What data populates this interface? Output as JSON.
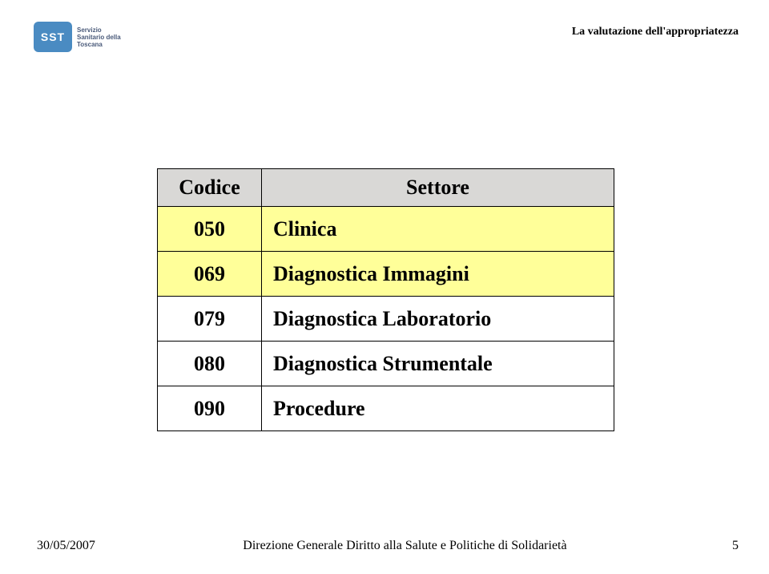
{
  "logo": {
    "mark_text": "SST",
    "side_text": "Servizio Sanitario della Toscana"
  },
  "header_right": "La valutazione dell'appropriatezza",
  "table": {
    "columns": [
      "Codice",
      "Settore"
    ],
    "rows": [
      {
        "code": "050",
        "sector": "Clinica",
        "highlight": true
      },
      {
        "code": "069",
        "sector": "Diagnostica Immagini",
        "highlight": true
      },
      {
        "code": "079",
        "sector": "Diagnostica Laboratorio",
        "highlight": false
      },
      {
        "code": "080",
        "sector": "Diagnostica Strumentale",
        "highlight": false
      },
      {
        "code": "090",
        "sector": "Procedure",
        "highlight": false
      }
    ],
    "header_bg": "#d9d8d6",
    "highlight_bg": "#ffff99",
    "border_color": "#000000",
    "font_size_pt": 26
  },
  "footer": {
    "date": "30/05/2007",
    "center": "Direzione Generale Diritto alla Salute e Politiche di Solidarietà",
    "page": "5"
  }
}
